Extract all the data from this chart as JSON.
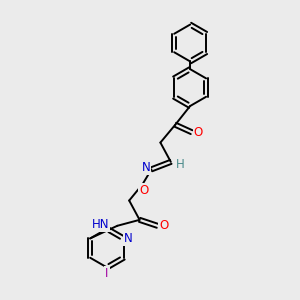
{
  "bg_color": "#ebebeb",
  "bond_color": "#000000",
  "bond_width": 1.4,
  "atom_colors": {
    "O": "#ff0000",
    "N": "#0000cd",
    "I": "#a000a0",
    "H": "#4a8a8a",
    "C": "#000000"
  },
  "font_size": 8.5,
  "fig_size": [
    3.0,
    3.0
  ],
  "dpi": 100
}
